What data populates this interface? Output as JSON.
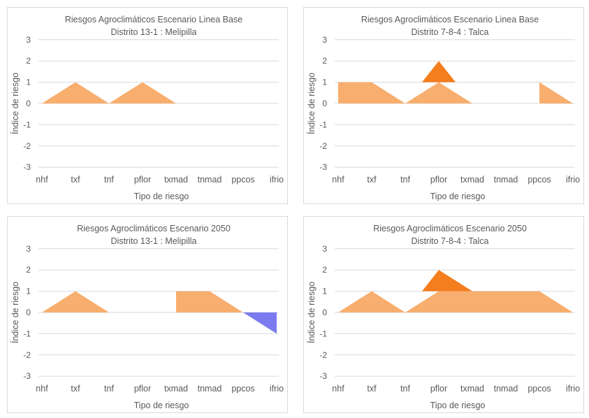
{
  "colors": {
    "base": "#F8AE6E",
    "high": "#F47D1E",
    "negative": "#7B7BF0",
    "grid": "#d9d9d9",
    "text": "#595959"
  },
  "chart_data": [
    {
      "type": "area",
      "title": "Riesgos Agroclimáticos Escenario Linea Base",
      "subtitle": "Distrito 13-1 :  Melipilla",
      "xlabel": "Tipo de riesgo",
      "ylabel": "Índice de riesgo",
      "ylim": [
        -3,
        3
      ],
      "yticks": [
        "3",
        "2",
        "1",
        "0",
        "-1",
        "-2",
        "-3"
      ],
      "categories": [
        "nhf",
        "txf",
        "tnf",
        "pflor",
        "txmad",
        "tnmad",
        "ppcos",
        "ifrio"
      ],
      "values": [
        0,
        1,
        0,
        1,
        0,
        null,
        null,
        null
      ],
      "grid": true,
      "legend": "none"
    },
    {
      "type": "area",
      "title": "Riesgos Agroclimáticos Escenario Linea Base",
      "subtitle": "Distrito 7-8-4 :  Talca",
      "xlabel": "Tipo de riesgo",
      "ylabel": "Índice de riesgo",
      "ylim": [
        -3,
        3
      ],
      "yticks": [
        "3",
        "2",
        "1",
        "0",
        "-1",
        "-2",
        "-3"
      ],
      "categories": [
        "nhf",
        "txf",
        "tnf",
        "pflor",
        "txmad",
        "tnmad",
        "ppcos",
        "ifrio"
      ],
      "values": [
        1,
        1,
        0,
        2,
        0,
        null,
        1,
        0
      ],
      "grid": true,
      "legend": "none"
    },
    {
      "type": "area",
      "title": "Riesgos Agroclimáticos Escenario 2050",
      "subtitle": "Distrito 13-1 :  Melipilla",
      "xlabel": "Tipo de riesgo",
      "ylabel": "Índice de riesgo",
      "ylim": [
        -3,
        3
      ],
      "yticks": [
        "3",
        "2",
        "1",
        "0",
        "-1",
        "-2",
        "-3"
      ],
      "categories": [
        "nhf",
        "txf",
        "tnf",
        "pflor",
        "txmad",
        "tnmad",
        "ppcos",
        "ifrio"
      ],
      "values": [
        0,
        1,
        0,
        null,
        1,
        1,
        0,
        -1
      ],
      "grid": true,
      "legend": "none"
    },
    {
      "type": "area",
      "title": "Riesgos Agroclimáticos Escenario 2050",
      "subtitle": "Distrito 7-8-4 :  Talca",
      "xlabel": "Tipo de riesgo",
      "ylabel": "Índice de riesgo",
      "ylim": [
        -3,
        3
      ],
      "yticks": [
        "3",
        "2",
        "1",
        "0",
        "-1",
        "-2",
        "-3"
      ],
      "categories": [
        "nhf",
        "txf",
        "tnf",
        "pflor",
        "txmad",
        "tnmad",
        "ppcos",
        "ifrio"
      ],
      "values": [
        0,
        1,
        0,
        2,
        1,
        1,
        1,
        0
      ],
      "grid": true,
      "legend": "none"
    }
  ]
}
